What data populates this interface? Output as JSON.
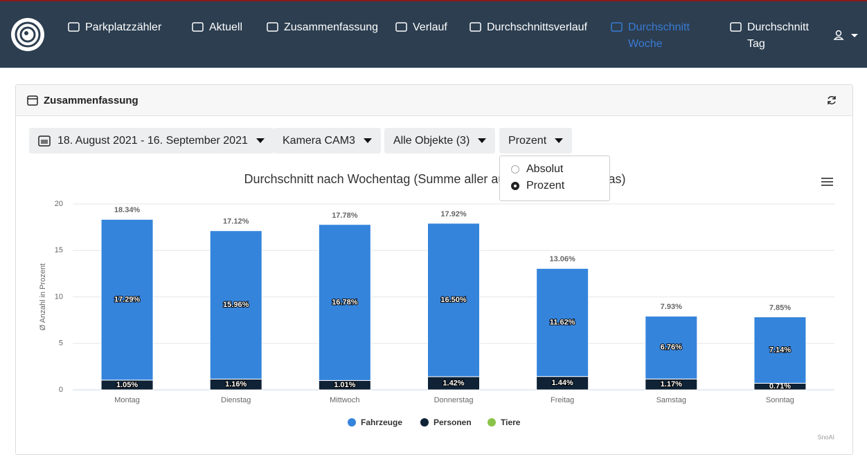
{
  "nav": {
    "items": [
      "Parkplatzzähler",
      "Aktuell",
      "Zusammenfassung",
      "Verlauf",
      "Durchschnittsverlauf",
      "Durchschnitt Woche",
      "Durchschnitt Tag"
    ],
    "active": 5
  },
  "panel": {
    "title": "Zusammenfassung"
  },
  "filters": [
    "18. August 2021 - 16. September 2021",
    "Kamera CAM3",
    "Alle Objekte (3)",
    "Prozent"
  ],
  "dropdown": {
    "options": [
      "Absolut",
      "Prozent"
    ],
    "selected": 1
  },
  "chart_data": {
    "type": "stacked_bar",
    "title": "Durchschnitt nach Wochentag (Summe aller ausgewählten Kameras)",
    "y_label": "Ø Anzahl in Prozent",
    "credit": "SnoAI",
    "categories": [
      "Montag",
      "Dienstag",
      "Mittwoch",
      "Donnerstag",
      "Freitag",
      "Samstag",
      "Sonntag"
    ],
    "ylim": [
      0,
      20
    ],
    "yticks": [
      0,
      5,
      10,
      15,
      20
    ],
    "grid": true,
    "series": [
      {
        "name": "Personen",
        "color": "#0f2236",
        "values": [
          1.05,
          1.16,
          1.01,
          1.42,
          1.44,
          1.17,
          0.71
        ],
        "value_labels": [
          "1.05%",
          "1.16%",
          "1.01%",
          "1.42%",
          "1.44%",
          "1.17%",
          "0.71%"
        ]
      },
      {
        "name": "Fahrzeuge",
        "color": "#3584dc",
        "values": [
          17.29,
          15.96,
          16.78,
          16.5,
          11.62,
          6.76,
          7.14
        ],
        "value_labels": [
          "17.29%",
          "15.96%",
          "16.78%",
          "16.50%",
          "11.62%",
          "6.76%",
          "7.14%"
        ]
      },
      {
        "name": "Tiere",
        "color": "#8bc34a",
        "values": [
          0,
          0,
          0,
          0,
          0,
          0,
          0
        ]
      }
    ],
    "legend_order": [
      1,
      0,
      2
    ],
    "totals": [
      18.34,
      17.12,
      17.78,
      17.92,
      13.06,
      7.93,
      7.85
    ],
    "total_labels": [
      "18.34%",
      "17.12%",
      "17.78%",
      "17.92%",
      "13.06%",
      "7.93%",
      "7.85%"
    ]
  }
}
